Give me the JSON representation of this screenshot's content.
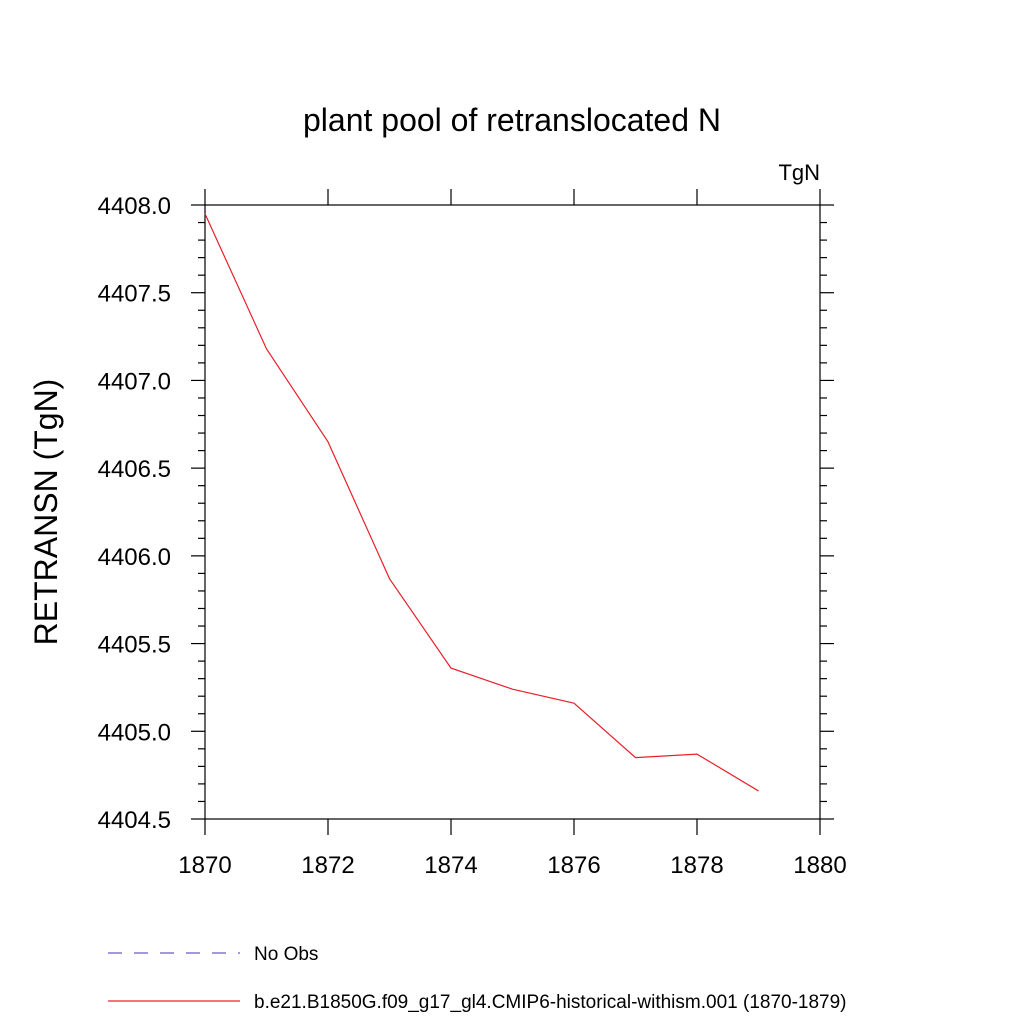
{
  "chart_data": {
    "type": "line",
    "title": "plant pool of retranslocated N",
    "units_label": "TgN",
    "xlabel": "",
    "ylabel": "RETRANSN  (TgN)",
    "xlim": [
      1870,
      1880
    ],
    "ylim": [
      4404.5,
      4408.0
    ],
    "x_ticks": [
      "1870",
      "1872",
      "1874",
      "1876",
      "1878",
      "1880"
    ],
    "x_tick_values": [
      1870,
      1872,
      1874,
      1876,
      1878,
      1880
    ],
    "y_ticks": [
      "4404.5",
      "4405.0",
      "4405.5",
      "4406.0",
      "4406.5",
      "4407.0",
      "4407.5",
      "4408.0"
    ],
    "y_tick_values": [
      4404.5,
      4405.0,
      4405.5,
      4406.0,
      4406.5,
      4407.0,
      4407.5,
      4408.0
    ],
    "grid": false,
    "legend_placement": "bottom",
    "series": [
      {
        "name": "b.e21.B1850G.f09_g17_gl4.CMIP6-historical-withism.001 (1870-1879)",
        "color": "#e8202a",
        "style": "solid",
        "x": [
          1870,
          1871,
          1872,
          1873,
          1874,
          1875,
          1876,
          1877,
          1878,
          1879
        ],
        "y": [
          4407.95,
          4407.18,
          4406.65,
          4405.87,
          4405.36,
          4405.24,
          4405.16,
          4404.85,
          4404.87,
          4404.66
        ]
      }
    ],
    "legend": [
      {
        "label": "No Obs",
        "color": "#6a5acd",
        "style": "dashed"
      },
      {
        "label": "b.e21.B1850G.f09_g17_gl4.CMIP6-historical-withism.001 (1870-1879)",
        "color": "#e8202a",
        "style": "solid"
      }
    ]
  }
}
